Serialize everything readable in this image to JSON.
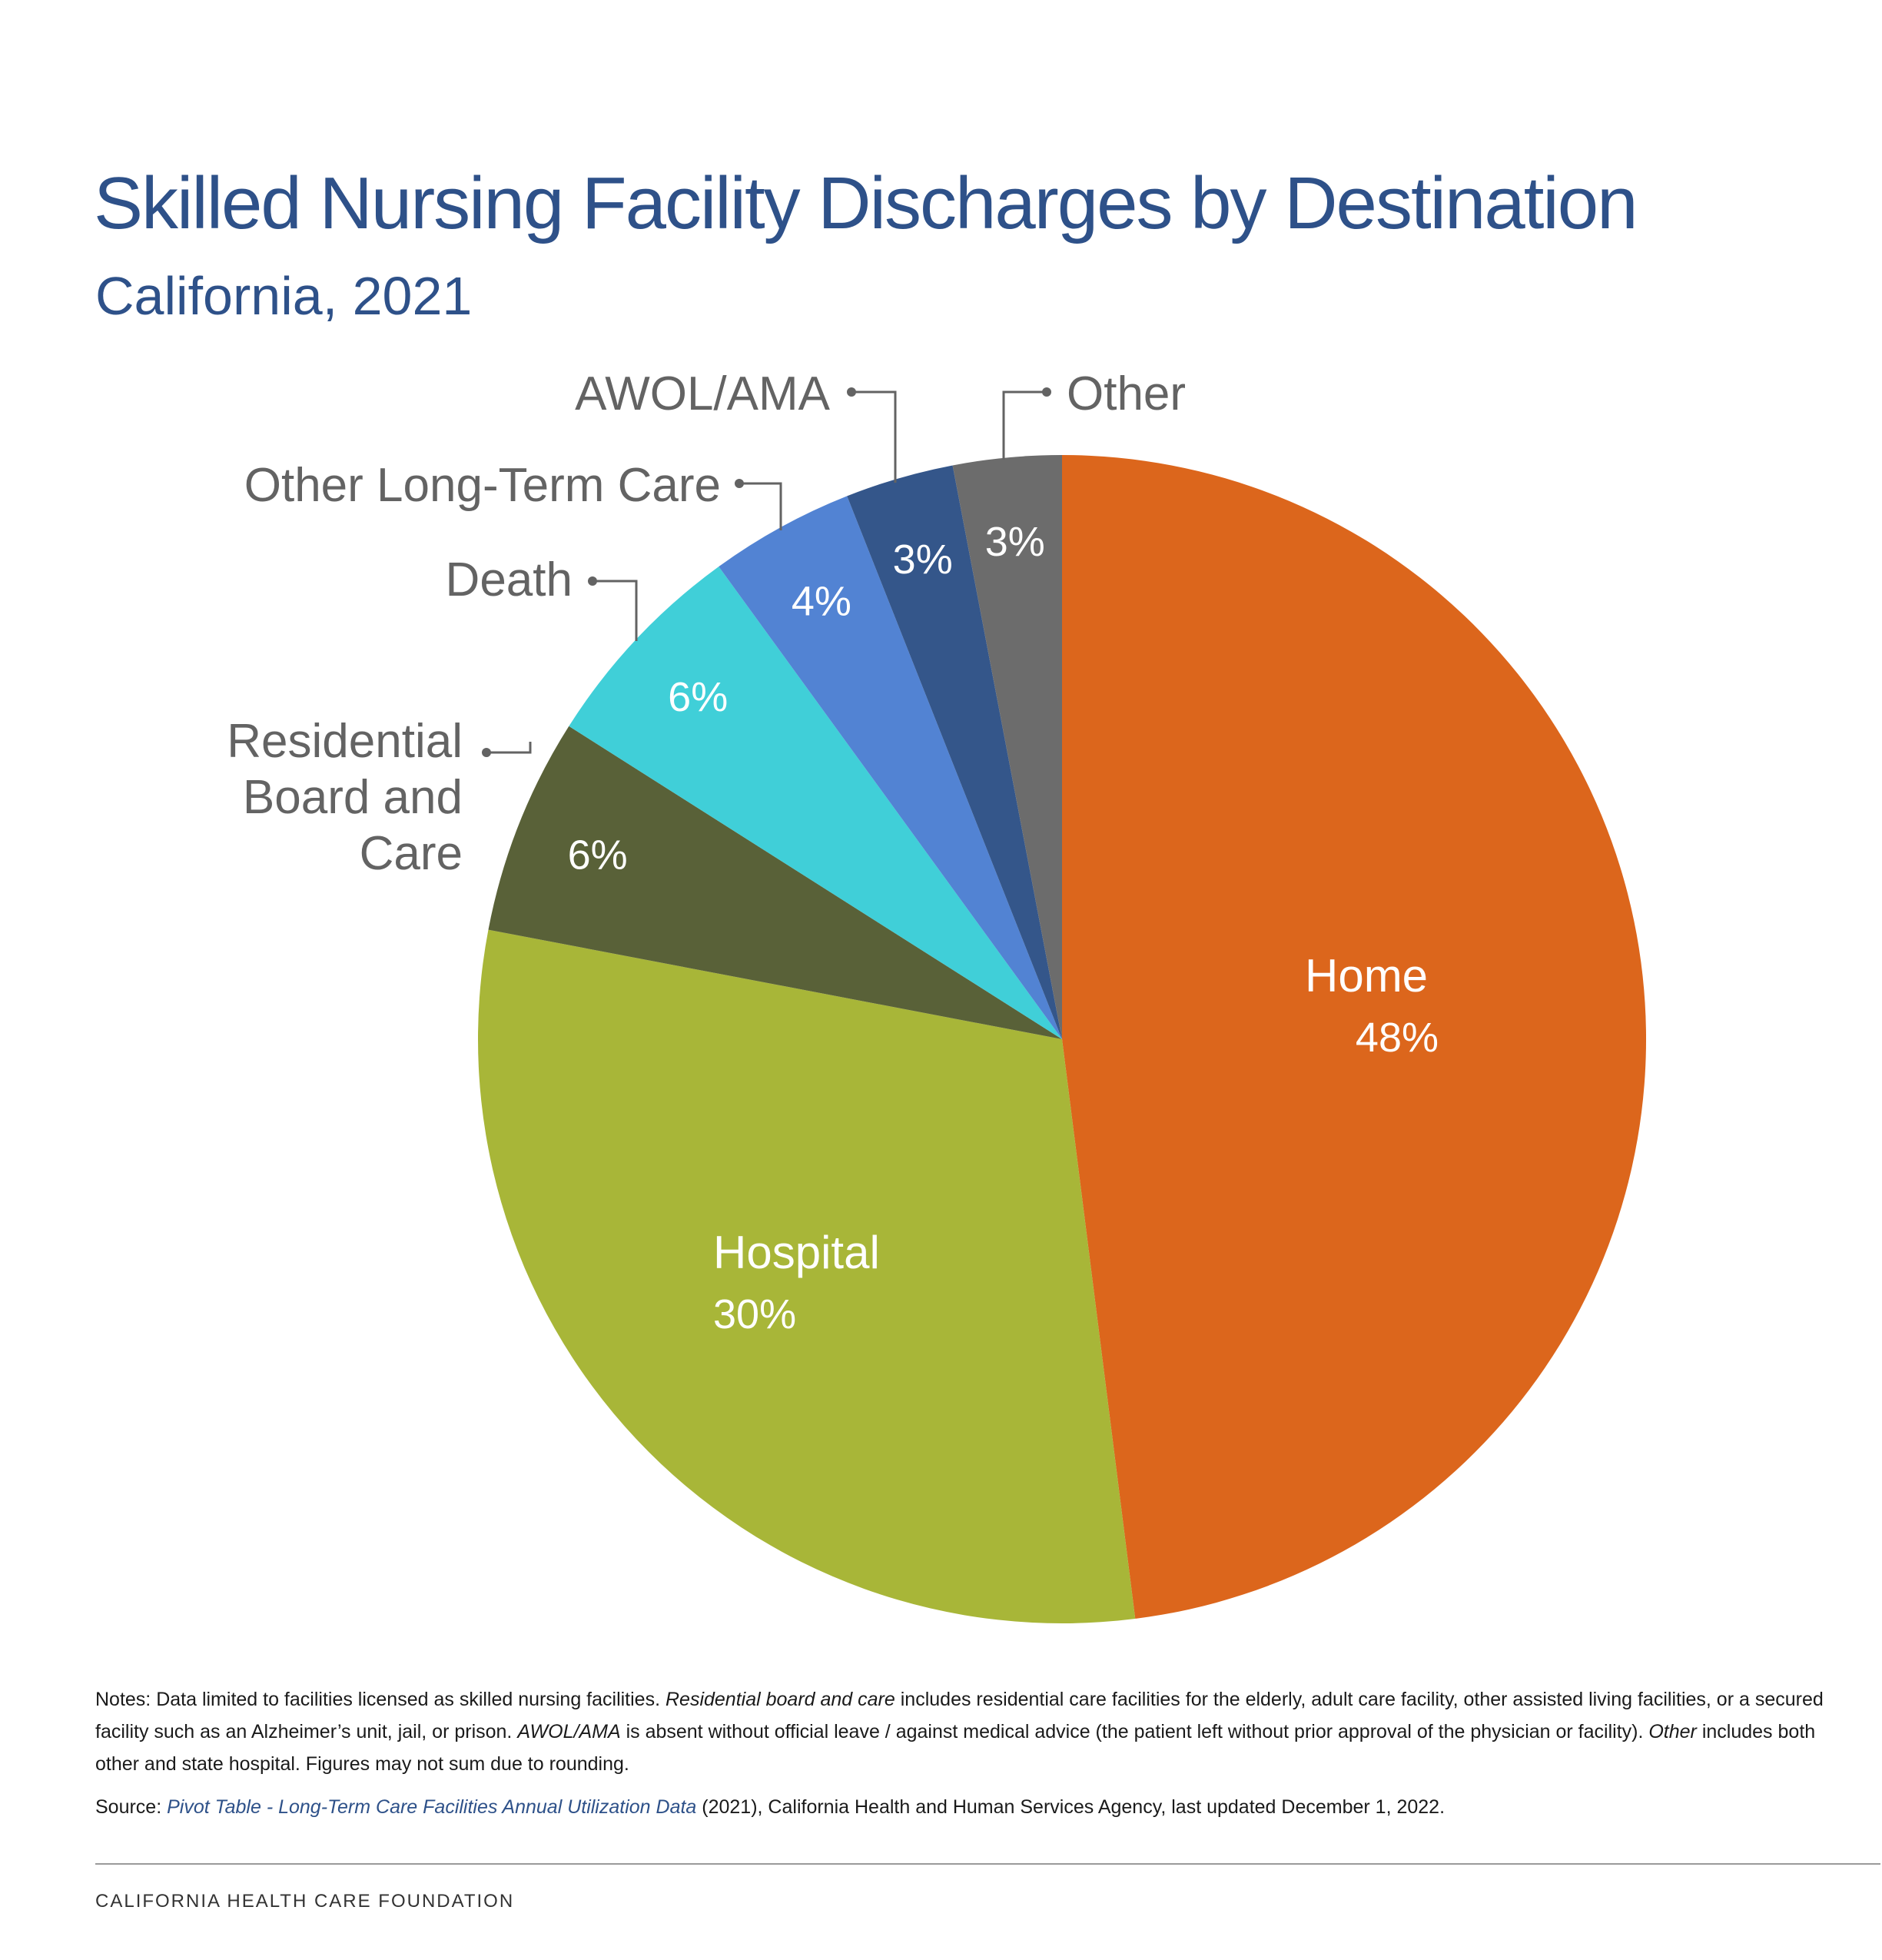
{
  "title": "Skilled Nursing Facility Discharges by Destination",
  "subtitle": "California, 2021",
  "chart_data": {
    "type": "pie",
    "title": "Skilled Nursing Facility Discharges by Destination",
    "subtitle": "California, 2021",
    "start": "12 o'clock",
    "direction": "clockwise",
    "slices": [
      {
        "label": "Home",
        "value": 48,
        "display": "48%",
        "color": "#dc661c",
        "label_inside": true
      },
      {
        "label": "Hospital",
        "value": 30,
        "display": "30%",
        "color": "#a8b638",
        "label_inside": true
      },
      {
        "label": "Residential Board and Care",
        "label_lines": [
          "Residential",
          "Board and",
          "Care"
        ],
        "value": 6,
        "display": "6%",
        "color": "#596138",
        "label_inside": false
      },
      {
        "label": "Death",
        "label_lines": [
          "Death"
        ],
        "value": 6,
        "display": "6%",
        "color": "#40cfd8",
        "label_inside": false
      },
      {
        "label": "Other Long-Term Care",
        "label_lines": [
          "Other Long-Term Care"
        ],
        "value": 4,
        "display": "4%",
        "color": "#5283d3",
        "label_inside": false
      },
      {
        "label": "AWOL/AMA",
        "label_lines": [
          "AWOL/AMA"
        ],
        "value": 3,
        "display": "3%",
        "color": "#34568a",
        "label_inside": false
      },
      {
        "label": "Other",
        "label_lines": [
          "Other"
        ],
        "value": 3,
        "display": "3%",
        "color": "#6c6c6c",
        "label_inside": false
      }
    ]
  },
  "notes": {
    "prefix": "Notes: Data limited to facilities licensed as skilled nursing facilities. ",
    "term1": "Residential board and care",
    "text1": " includes residential care facilities for the elderly, adult care facility, other assisted living facilities, or a secured facility such as an Alzheimer’s unit, jail, or prison. ",
    "term2": "AWOL/AMA",
    "text2": " is absent without official leave / against medical advice (the patient left without prior approval of the physician or facility). ",
    "term3": "Other",
    "text3": " includes both other and state hospital. Figures may not sum due to rounding."
  },
  "source": {
    "prefix": "Source: ",
    "link_text": "Pivot Table - Long-Term Care Facilities Annual Utilization Data",
    "suffix": " (2021), California Health and Human Services Agency, last updated December 1, 2022."
  },
  "footer": "CALIFORNIA HEALTH CARE FOUNDATION"
}
